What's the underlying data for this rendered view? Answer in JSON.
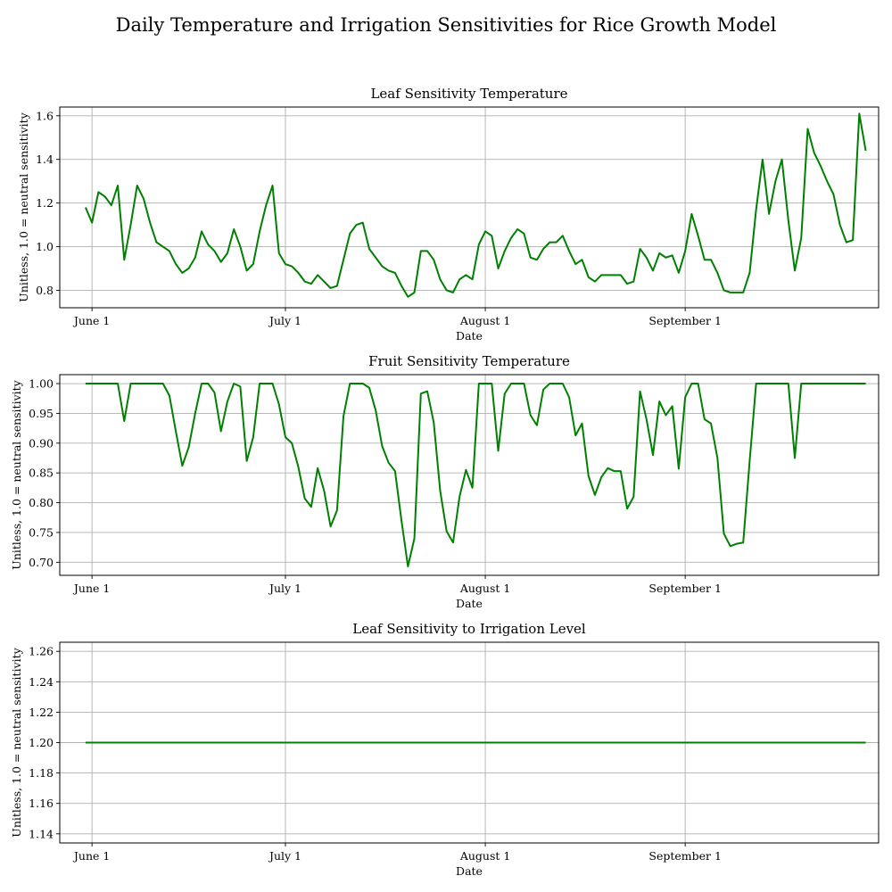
{
  "figure": {
    "title": "Daily Temperature and Irrigation Sensitivities for Rice Growth Model"
  },
  "chart_data": [
    {
      "type": "line",
      "title": "Leaf Sensitivity Temperature",
      "xlabel": "Date",
      "ylabel": "Unitless, 1.0 = neutral sensitivity",
      "x_start": "2023-05-31",
      "x_step_days": 1,
      "xlim": [
        "2023-05-27",
        "2023-10-01"
      ],
      "xticks": [
        {
          "date": "2023-06-01",
          "label": "June 1"
        },
        {
          "date": "2023-07-01",
          "label": "July 1"
        },
        {
          "date": "2023-08-01",
          "label": "August 1"
        },
        {
          "date": "2023-09-01",
          "label": "September 1"
        }
      ],
      "ylim": [
        0.72,
        1.64
      ],
      "yticks": [
        {
          "value": 0.8,
          "label": "0.8"
        },
        {
          "value": 1.0,
          "label": "1.0"
        },
        {
          "value": 1.2,
          "label": "1.2"
        },
        {
          "value": 1.4,
          "label": "1.4"
        },
        {
          "value": 1.6,
          "label": "1.6"
        }
      ],
      "grid": true,
      "color": "#008000",
      "values": [
        1.18,
        1.11,
        1.25,
        1.23,
        1.19,
        1.28,
        0.94,
        1.1,
        1.28,
        1.22,
        1.11,
        1.02,
        1.0,
        0.98,
        0.92,
        0.88,
        0.9,
        0.95,
        1.07,
        1.01,
        0.98,
        0.93,
        0.97,
        1.08,
        1.0,
        0.89,
        0.92,
        1.07,
        1.19,
        1.28,
        0.97,
        0.92,
        0.91,
        0.88,
        0.84,
        0.83,
        0.87,
        0.84,
        0.81,
        0.82,
        0.94,
        1.06,
        1.1,
        1.11,
        0.99,
        0.95,
        0.91,
        0.89,
        0.88,
        0.82,
        0.77,
        0.79,
        0.98,
        0.98,
        0.94,
        0.85,
        0.8,
        0.79,
        0.85,
        0.87,
        0.85,
        1.01,
        1.07,
        1.05,
        0.9,
        0.98,
        1.04,
        1.08,
        1.06,
        0.95,
        0.94,
        0.99,
        1.02,
        1.02,
        1.05,
        0.98,
        0.92,
        0.94,
        0.86,
        0.84,
        0.87,
        0.87,
        0.87,
        0.87,
        0.83,
        0.84,
        0.99,
        0.95,
        0.89,
        0.97,
        0.95,
        0.96,
        0.88,
        0.98,
        1.15,
        1.05,
        0.94,
        0.94,
        0.88,
        0.8,
        0.79,
        0.79,
        0.79,
        0.88,
        1.17,
        1.4,
        1.15,
        1.3,
        1.4,
        1.12,
        0.89,
        1.04,
        1.54,
        1.43,
        1.37,
        1.3,
        1.24,
        1.1,
        1.02,
        1.03,
        1.61,
        1.44
      ]
    },
    {
      "type": "line",
      "title": "Fruit Sensitivity Temperature",
      "xlabel": "Date",
      "ylabel": "Unitless, 1.0 = neutral sensitivity",
      "x_start": "2023-05-31",
      "x_step_days": 1,
      "xlim": [
        "2023-05-27",
        "2023-10-01"
      ],
      "xticks": [
        {
          "date": "2023-06-01",
          "label": "June 1"
        },
        {
          "date": "2023-07-01",
          "label": "July 1"
        },
        {
          "date": "2023-08-01",
          "label": "August 1"
        },
        {
          "date": "2023-09-01",
          "label": "September 1"
        }
      ],
      "ylim": [
        0.678,
        1.015
      ],
      "yticks": [
        {
          "value": 0.7,
          "label": "0.70"
        },
        {
          "value": 0.75,
          "label": "0.75"
        },
        {
          "value": 0.8,
          "label": "0.80"
        },
        {
          "value": 0.85,
          "label": "0.85"
        },
        {
          "value": 0.9,
          "label": "0.90"
        },
        {
          "value": 0.95,
          "label": "0.95"
        },
        {
          "value": 1.0,
          "label": "1.00"
        }
      ],
      "grid": true,
      "color": "#008000",
      "values": [
        1.0,
        1.0,
        1.0,
        1.0,
        1.0,
        1.0,
        0.937,
        1.0,
        1.0,
        1.0,
        1.0,
        1.0,
        1.0,
        0.98,
        0.92,
        0.862,
        0.893,
        0.95,
        1.0,
        1.0,
        0.985,
        0.92,
        0.97,
        1.0,
        0.995,
        0.87,
        0.91,
        1.0,
        1.0,
        1.0,
        0.965,
        0.91,
        0.9,
        0.86,
        0.807,
        0.793,
        0.858,
        0.82,
        0.76,
        0.787,
        0.945,
        1.0,
        1.0,
        1.0,
        0.993,
        0.955,
        0.895,
        0.867,
        0.853,
        0.77,
        0.693,
        0.74,
        0.983,
        0.987,
        0.935,
        0.82,
        0.752,
        0.733,
        0.81,
        0.855,
        0.825,
        1.0,
        1.0,
        1.0,
        0.887,
        0.983,
        1.0,
        1.0,
        1.0,
        0.947,
        0.93,
        0.99,
        1.0,
        1.0,
        1.0,
        0.977,
        0.913,
        0.933,
        0.845,
        0.813,
        0.843,
        0.858,
        0.853,
        0.853,
        0.79,
        0.81,
        0.987,
        0.94,
        0.88,
        0.97,
        0.947,
        0.962,
        0.857,
        0.977,
        1.0,
        1.0,
        0.94,
        0.933,
        0.875,
        0.748,
        0.727,
        0.731,
        0.733,
        0.87,
        1.0,
        1.0,
        1.0,
        1.0,
        1.0,
        1.0,
        0.875,
        1.0,
        1.0,
        1.0,
        1.0,
        1.0,
        1.0,
        1.0,
        1.0,
        1.0,
        1.0,
        1.0
      ]
    },
    {
      "type": "line",
      "title": "Leaf Sensitivity to Irrigation Level",
      "xlabel": "Date",
      "ylabel": "Unitless, 1.0 = neutral sensitivity",
      "x_start": "2023-05-31",
      "x_step_days": 1,
      "xlim": [
        "2023-05-27",
        "2023-10-01"
      ],
      "xticks": [
        {
          "date": "2023-06-01",
          "label": "June 1"
        },
        {
          "date": "2023-07-01",
          "label": "July 1"
        },
        {
          "date": "2023-08-01",
          "label": "August 1"
        },
        {
          "date": "2023-09-01",
          "label": "September 1"
        }
      ],
      "ylim": [
        1.134,
        1.266
      ],
      "yticks": [
        {
          "value": 1.14,
          "label": "1.14"
        },
        {
          "value": 1.16,
          "label": "1.16"
        },
        {
          "value": 1.18,
          "label": "1.18"
        },
        {
          "value": 1.2,
          "label": "1.20"
        },
        {
          "value": 1.22,
          "label": "1.22"
        },
        {
          "value": 1.24,
          "label": "1.24"
        },
        {
          "value": 1.26,
          "label": "1.26"
        }
      ],
      "grid": true,
      "color": "#008000",
      "values": [
        1.2,
        1.2,
        1.2,
        1.2,
        1.2,
        1.2,
        1.2,
        1.2,
        1.2,
        1.2,
        1.2,
        1.2,
        1.2,
        1.2,
        1.2,
        1.2,
        1.2,
        1.2,
        1.2,
        1.2,
        1.2,
        1.2,
        1.2,
        1.2,
        1.2,
        1.2,
        1.2,
        1.2,
        1.2,
        1.2,
        1.2,
        1.2,
        1.2,
        1.2,
        1.2,
        1.2,
        1.2,
        1.2,
        1.2,
        1.2,
        1.2,
        1.2,
        1.2,
        1.2,
        1.2,
        1.2,
        1.2,
        1.2,
        1.2,
        1.2,
        1.2,
        1.2,
        1.2,
        1.2,
        1.2,
        1.2,
        1.2,
        1.2,
        1.2,
        1.2,
        1.2,
        1.2,
        1.2,
        1.2,
        1.2,
        1.2,
        1.2,
        1.2,
        1.2,
        1.2,
        1.2,
        1.2,
        1.2,
        1.2,
        1.2,
        1.2,
        1.2,
        1.2,
        1.2,
        1.2,
        1.2,
        1.2,
        1.2,
        1.2,
        1.2,
        1.2,
        1.2,
        1.2,
        1.2,
        1.2,
        1.2,
        1.2,
        1.2,
        1.2,
        1.2,
        1.2,
        1.2,
        1.2,
        1.2,
        1.2,
        1.2,
        1.2,
        1.2,
        1.2,
        1.2,
        1.2,
        1.2,
        1.2,
        1.2,
        1.2,
        1.2,
        1.2,
        1.2,
        1.2,
        1.2,
        1.2,
        1.2,
        1.2,
        1.2,
        1.2,
        1.2,
        1.2
      ]
    }
  ]
}
